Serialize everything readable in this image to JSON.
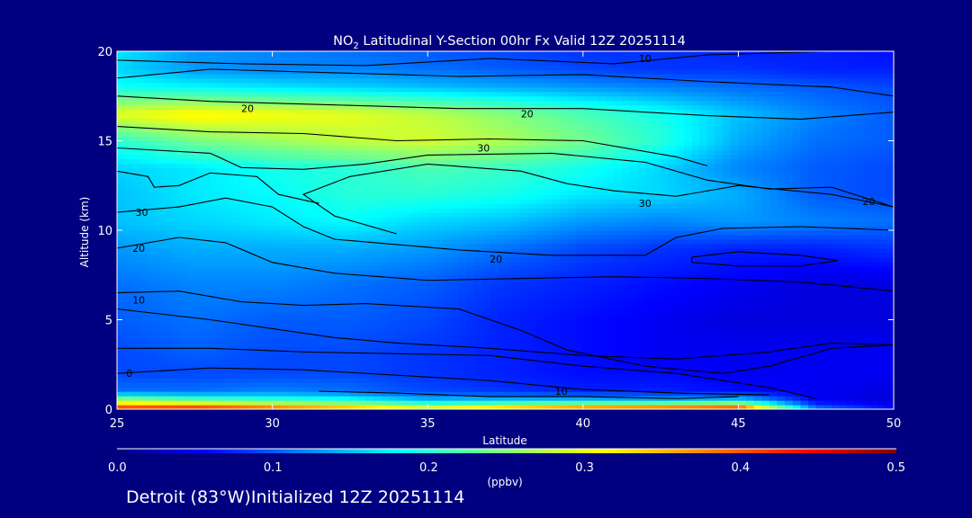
{
  "chart_data": {
    "type": "heatmap",
    "title_prefix": "NO",
    "title_subscript": "2",
    "title_suffix": " Latitudinal Y-Section 00hr  Fx Valid 12Z 20251114",
    "xlabel": "Latitude",
    "ylabel": "Altitude (km)",
    "xlim": [
      25,
      50
    ],
    "ylim": [
      0,
      20
    ],
    "xticks": [
      "25",
      "30",
      "35",
      "40",
      "45",
      "50"
    ],
    "yticks": [
      "0",
      "5",
      "10",
      "15",
      "20"
    ],
    "x": [
      25,
      27.5,
      30,
      32.5,
      35,
      37.5,
      40,
      42.5,
      45,
      47.5,
      50
    ],
    "y": [
      0,
      0.5,
      1,
      2,
      3,
      5,
      7,
      9,
      10.5,
      12,
      13.5,
      15,
      16.5,
      18,
      19,
      20
    ],
    "values": [
      [
        0.44,
        0.46,
        0.42,
        0.38,
        0.33,
        0.38,
        0.42,
        0.44,
        0.46,
        0.12,
        0.06
      ],
      [
        0.28,
        0.24,
        0.22,
        0.2,
        0.15,
        0.16,
        0.16,
        0.15,
        0.17,
        0.05,
        0.04
      ],
      [
        0.11,
        0.11,
        0.12,
        0.11,
        0.09,
        0.08,
        0.07,
        0.07,
        0.06,
        0.05,
        0.04
      ],
      [
        0.09,
        0.09,
        0.09,
        0.09,
        0.08,
        0.07,
        0.06,
        0.06,
        0.05,
        0.05,
        0.05
      ],
      [
        0.09,
        0.1,
        0.09,
        0.09,
        0.08,
        0.07,
        0.06,
        0.05,
        0.05,
        0.05,
        0.05
      ],
      [
        0.1,
        0.11,
        0.1,
        0.1,
        0.09,
        0.07,
        0.06,
        0.05,
        0.04,
        0.04,
        0.04
      ],
      [
        0.11,
        0.12,
        0.12,
        0.11,
        0.1,
        0.08,
        0.07,
        0.06,
        0.05,
        0.04,
        0.04
      ],
      [
        0.13,
        0.14,
        0.14,
        0.14,
        0.13,
        0.11,
        0.09,
        0.08,
        0.07,
        0.07,
        0.08
      ],
      [
        0.15,
        0.16,
        0.17,
        0.18,
        0.16,
        0.15,
        0.13,
        0.12,
        0.13,
        0.12,
        0.11
      ],
      [
        0.15,
        0.17,
        0.18,
        0.2,
        0.2,
        0.19,
        0.17,
        0.16,
        0.14,
        0.1,
        0.09
      ],
      [
        0.16,
        0.17,
        0.19,
        0.2,
        0.22,
        0.21,
        0.19,
        0.16,
        0.12,
        0.1,
        0.09
      ],
      [
        0.2,
        0.24,
        0.26,
        0.28,
        0.29,
        0.27,
        0.24,
        0.2,
        0.14,
        0.11,
        0.1
      ],
      [
        0.3,
        0.32,
        0.31,
        0.3,
        0.28,
        0.25,
        0.22,
        0.19,
        0.15,
        0.12,
        0.1
      ],
      [
        0.19,
        0.18,
        0.17,
        0.16,
        0.15,
        0.14,
        0.13,
        0.12,
        0.11,
        0.1,
        0.09
      ],
      [
        0.16,
        0.13,
        0.12,
        0.12,
        0.11,
        0.1,
        0.09,
        0.08,
        0.08,
        0.07,
        0.07
      ],
      [
        0.17,
        0.13,
        0.12,
        0.11,
        0.1,
        0.09,
        0.08,
        0.08,
        0.07,
        0.07,
        0.06
      ]
    ],
    "contour_labels": [
      {
        "text": "10",
        "lat": 42.0,
        "alt": 19.6
      },
      {
        "text": "20",
        "lat": 29.2,
        "alt": 16.8
      },
      {
        "text": "20",
        "lat": 38.2,
        "alt": 16.5
      },
      {
        "text": "30",
        "lat": 36.8,
        "alt": 14.6
      },
      {
        "text": "30",
        "lat": 25.8,
        "alt": 11.0
      },
      {
        "text": "30",
        "lat": 42.0,
        "alt": 11.5
      },
      {
        "text": "20",
        "lat": 49.2,
        "alt": 11.6
      },
      {
        "text": "20",
        "lat": 25.7,
        "alt": 9.0
      },
      {
        "text": "20",
        "lat": 37.2,
        "alt": 8.4
      },
      {
        "text": "10",
        "lat": 25.7,
        "alt": 6.1
      },
      {
        "text": "0",
        "lat": 25.4,
        "alt": 2.0
      },
      {
        "text": "10",
        "lat": 39.3,
        "alt": 1.0
      }
    ],
    "contours": [
      [
        [
          25,
          19.5
        ],
        [
          29,
          19.3
        ],
        [
          33,
          19.2
        ],
        [
          37,
          19.6
        ],
        [
          41,
          19.3
        ],
        [
          44,
          19.8
        ],
        [
          48,
          20
        ]
      ],
      [
        [
          25,
          18.5
        ],
        [
          28,
          19.0
        ],
        [
          32,
          18.8
        ],
        [
          36,
          18.6
        ],
        [
          40,
          18.7
        ],
        [
          44,
          18.3
        ],
        [
          48,
          18.0
        ],
        [
          50,
          17.5
        ]
      ],
      [
        [
          25,
          17.5
        ],
        [
          28,
          17.2
        ],
        [
          32,
          17.0
        ],
        [
          36,
          16.8
        ],
        [
          40,
          16.8
        ],
        [
          44,
          16.4
        ],
        [
          47,
          16.2
        ],
        [
          50,
          16.6
        ]
      ],
      [
        [
          25,
          15.8
        ],
        [
          28,
          15.5
        ],
        [
          31,
          15.4
        ],
        [
          34,
          15.0
        ],
        [
          37,
          15.1
        ],
        [
          40,
          15.0
        ],
        [
          43,
          14.1
        ],
        [
          44,
          13.6
        ]
      ],
      [
        [
          25,
          14.6
        ],
        [
          28,
          14.3
        ],
        [
          29,
          13.5
        ],
        [
          31,
          13.4
        ],
        [
          33,
          13.7
        ],
        [
          35,
          14.2
        ],
        [
          39,
          14.3
        ],
        [
          42,
          13.8
        ],
        [
          44,
          12.8
        ],
        [
          46,
          12.3
        ],
        [
          48,
          12.4
        ],
        [
          50,
          11.3
        ]
      ],
      [
        [
          25,
          13.3
        ],
        [
          26,
          13.0
        ],
        [
          26.2,
          12.4
        ],
        [
          27,
          12.5
        ],
        [
          28,
          13.2
        ],
        [
          29.5,
          13.0
        ],
        [
          30.2,
          12.0
        ],
        [
          31.5,
          11.5
        ]
      ],
      [
        [
          34,
          9.8
        ],
        [
          32,
          10.8
        ],
        [
          31,
          12.0
        ],
        [
          32.5,
          13.0
        ],
        [
          35,
          13.7
        ],
        [
          38,
          13.3
        ],
        [
          39.5,
          12.6
        ],
        [
          41,
          12.2
        ],
        [
          43,
          11.9
        ],
        [
          45,
          12.5
        ],
        [
          48,
          12.0
        ],
        [
          50,
          11.3
        ]
      ],
      [
        [
          25,
          11.0
        ],
        [
          27,
          11.3
        ],
        [
          28.5,
          11.8
        ],
        [
          30,
          11.3
        ],
        [
          31,
          10.2
        ],
        [
          32,
          9.5
        ],
        [
          34,
          9.2
        ],
        [
          36,
          8.9
        ],
        [
          39,
          8.6
        ],
        [
          42,
          8.6
        ],
        [
          43,
          9.6
        ],
        [
          44.5,
          10.1
        ],
        [
          47,
          10.2
        ],
        [
          50,
          10.0
        ]
      ],
      [
        [
          25,
          9.0
        ],
        [
          27,
          9.6
        ],
        [
          28.5,
          9.3
        ],
        [
          30,
          8.2
        ],
        [
          32,
          7.6
        ],
        [
          35,
          7.2
        ],
        [
          38,
          7.3
        ],
        [
          41,
          7.4
        ],
        [
          44,
          7.3
        ],
        [
          47,
          7.1
        ],
        [
          50,
          6.6
        ]
      ],
      [
        [
          25,
          6.5
        ],
        [
          27,
          6.6
        ],
        [
          29,
          6.0
        ],
        [
          31,
          5.8
        ],
        [
          33,
          5.9
        ],
        [
          36,
          5.6
        ],
        [
          38,
          4.4
        ],
        [
          39.5,
          3.3
        ],
        [
          42,
          2.4
        ],
        [
          44.5,
          2.0
        ],
        [
          46,
          2.4
        ],
        [
          48,
          3.4
        ],
        [
          50,
          3.6
        ]
      ],
      [
        [
          25,
          5.6
        ],
        [
          28,
          5.0
        ],
        [
          30,
          4.5
        ],
        [
          32,
          4.0
        ],
        [
          34,
          3.7
        ],
        [
          37,
          3.4
        ],
        [
          40,
          3.0
        ],
        [
          43,
          2.8
        ],
        [
          46,
          3.2
        ],
        [
          48,
          3.7
        ],
        [
          50,
          3.6
        ]
      ],
      [
        [
          25,
          3.4
        ],
        [
          28,
          3.4
        ],
        [
          31,
          3.2
        ],
        [
          34,
          3.1
        ],
        [
          37,
          3.0
        ],
        [
          40,
          2.4
        ],
        [
          43,
          2.0
        ],
        [
          46,
          1.2
        ],
        [
          47.5,
          0.6
        ]
      ],
      [
        [
          25,
          2.0
        ],
        [
          28,
          2.3
        ],
        [
          31,
          2.2
        ],
        [
          34,
          1.9
        ],
        [
          37,
          1.6
        ],
        [
          40,
          1.1
        ],
        [
          43,
          0.9
        ],
        [
          46,
          0.8
        ]
      ],
      [
        [
          31.5,
          1.0
        ],
        [
          34,
          0.9
        ],
        [
          37,
          0.7
        ],
        [
          40,
          0.7
        ],
        [
          43,
          0.6
        ],
        [
          45,
          0.7
        ]
      ],
      [
        [
          43.5,
          8.5
        ],
        [
          45,
          8.8
        ],
        [
          47,
          8.6
        ],
        [
          48.2,
          8.3
        ],
        [
          47,
          8.0
        ],
        [
          45,
          8.0
        ],
        [
          43.5,
          8.2
        ],
        [
          43.5,
          8.5
        ]
      ]
    ],
    "colorbar": {
      "ticks": [
        "0.0",
        "0.1",
        "0.2",
        "0.3",
        "0.4",
        "0.5"
      ],
      "range": [
        0,
        0.5
      ],
      "unit": "(ppbv)"
    }
  },
  "footer": {
    "text": "Detroit (83°W)Initialized 12Z 20251114"
  }
}
